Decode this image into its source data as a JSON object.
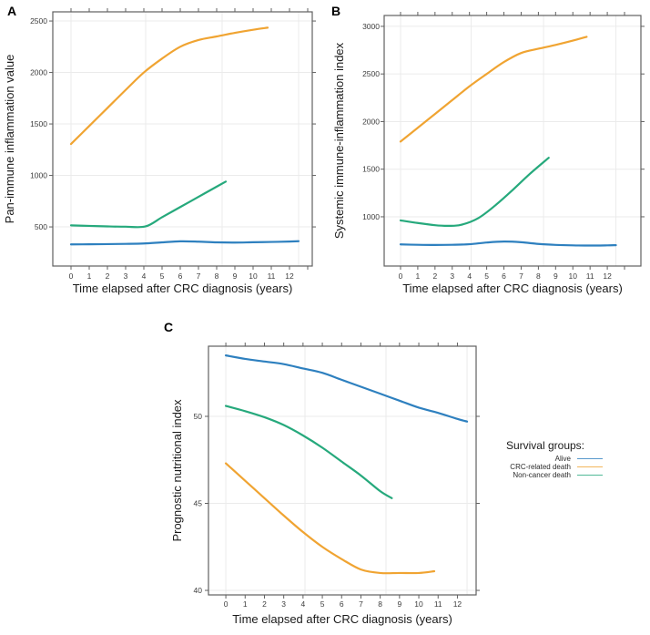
{
  "figure": {
    "background": "#ffffff"
  },
  "colors": {
    "alive": "#2e80bf",
    "crc_related_death": "#f0a432",
    "non_cancer_death": "#26a97c",
    "grid": "#ebebeb",
    "frame": "#606060",
    "tick_label": "#3c3c3c",
    "axis_title": "#1a1a1a"
  },
  "legend": {
    "title": "Survival groups:",
    "items": [
      {
        "label": "Alive",
        "color": "#2e80bf"
      },
      {
        "label": "CRC-related death",
        "color": "#f0a432"
      },
      {
        "label": "Non-cancer death",
        "color": "#26a97c"
      }
    ]
  },
  "chart_data": [
    {
      "panel_label": "A",
      "type": "line",
      "title": "",
      "xlabel": "Time elapsed after CRC diagnosis (years)",
      "ylabel": "Pan-immune inflammation value",
      "xticks": [
        0,
        1,
        2,
        3,
        4,
        5,
        6,
        7,
        8,
        9,
        10,
        11,
        12
      ],
      "yticks": [
        500,
        1000,
        1500,
        2000,
        2500
      ],
      "xlim": [
        -1,
        13.25
      ],
      "ylim": [
        120,
        2589
      ],
      "grid": true,
      "grid_x": [
        0,
        4.1,
        8.3,
        12.5
      ],
      "legend_position": "none",
      "series": [
        {
          "name": "Alive",
          "color": "#2e80bf",
          "x": [
            0,
            1,
            2,
            3,
            4,
            5,
            6,
            7,
            8,
            9,
            10,
            11,
            12,
            12.5
          ],
          "y": [
            330,
            331,
            333,
            335,
            339,
            350,
            360,
            357,
            350,
            348,
            351,
            354,
            358,
            361
          ]
        },
        {
          "name": "CRC-related death",
          "color": "#f0a432",
          "x": [
            0,
            1,
            2,
            3,
            4,
            5,
            6,
            7,
            8,
            9,
            10,
            10.8
          ],
          "y": [
            1305,
            1480,
            1655,
            1830,
            2000,
            2135,
            2250,
            2315,
            2350,
            2385,
            2415,
            2435
          ]
        },
        {
          "name": "Non-cancer death",
          "color": "#26a97c",
          "x": [
            0,
            1,
            2,
            3,
            4.1,
            5,
            6,
            7,
            8,
            8.5
          ],
          "y": [
            515,
            510,
            505,
            502,
            505,
            594,
            693,
            792,
            891,
            940
          ]
        }
      ]
    },
    {
      "panel_label": "B",
      "type": "line",
      "title": "",
      "xlabel": "Time elapsed after CRC diagnosis (years)",
      "ylabel": "Systemic immune-inflammation index",
      "xticks": [
        0,
        1,
        2,
        3,
        4,
        5,
        6,
        7,
        8,
        9,
        10,
        11,
        12
      ],
      "yticks": [
        1000,
        1500,
        2000,
        2500,
        3000
      ],
      "xlim": [
        -0.95,
        13.95
      ],
      "ylim": [
        483,
        3114
      ],
      "grid": true,
      "grid_x": [
        0,
        4.1,
        8.3,
        12.5
      ],
      "legend_position": "none",
      "series": [
        {
          "name": "Alive",
          "color": "#2e80bf",
          "x": [
            0,
            1,
            2,
            3,
            4,
            5,
            6,
            7,
            8,
            9,
            10,
            11,
            12,
            12.5
          ],
          "y": [
            710,
            706,
            704,
            706,
            712,
            730,
            740,
            733,
            715,
            705,
            700,
            698,
            700,
            702
          ]
        },
        {
          "name": "CRC-related death",
          "color": "#f0a432",
          "x": [
            0,
            1,
            2,
            3,
            4,
            5,
            6,
            7,
            8,
            9,
            10,
            10.8
          ],
          "y": [
            1790,
            1935,
            2080,
            2225,
            2370,
            2500,
            2625,
            2720,
            2765,
            2805,
            2850,
            2890
          ]
        },
        {
          "name": "Non-cancer death",
          "color": "#26a97c",
          "x": [
            0,
            1,
            2,
            2.75,
            3.5,
            4.5,
            5.5,
            6.5,
            7.5,
            8.6
          ],
          "y": [
            962,
            935,
            912,
            905,
            915,
            985,
            1120,
            1280,
            1450,
            1620
          ]
        }
      ]
    },
    {
      "panel_label": "C",
      "type": "line",
      "title": "",
      "xlabel": "Time elapsed after CRC diagnosis (years)",
      "ylabel": "Prognostic nutritional index",
      "xticks": [
        0,
        1,
        2,
        3,
        4,
        5,
        6,
        7,
        8,
        9,
        10,
        11,
        12
      ],
      "yticks": [
        40,
        45,
        50
      ],
      "xlim": [
        -0.9,
        12.97
      ],
      "ylim": [
        39.74,
        54.03
      ],
      "grid": true,
      "grid_x": [
        0,
        4.1,
        8.3,
        12.5
      ],
      "legend_position": "right",
      "series": [
        {
          "name": "Alive",
          "color": "#2e80bf",
          "x": [
            0,
            1,
            2,
            3,
            4,
            5,
            6,
            7,
            8,
            9,
            10,
            11,
            12,
            12.5
          ],
          "y": [
            53.5,
            53.3,
            53.15,
            53.0,
            52.75,
            52.5,
            52.1,
            51.7,
            51.3,
            50.9,
            50.5,
            50.2,
            49.85,
            49.7
          ]
        },
        {
          "name": "CRC-related death",
          "color": "#f0a432",
          "x": [
            0,
            1,
            2,
            3,
            4,
            5,
            6,
            7,
            8,
            9,
            10,
            10.8
          ],
          "y": [
            47.3,
            46.3,
            45.3,
            44.3,
            43.35,
            42.5,
            41.8,
            41.2,
            41.0,
            41.0,
            41.0,
            41.1
          ]
        },
        {
          "name": "Non-cancer death",
          "color": "#26a97c",
          "x": [
            0,
            1,
            2,
            3,
            4,
            5,
            6,
            7,
            8,
            8.6
          ],
          "y": [
            50.6,
            50.3,
            49.95,
            49.5,
            48.9,
            48.2,
            47.4,
            46.6,
            45.7,
            45.3
          ]
        }
      ]
    }
  ]
}
